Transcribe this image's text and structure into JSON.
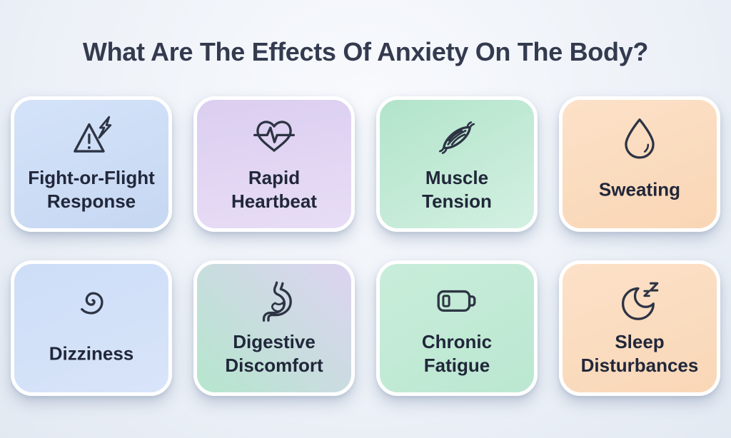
{
  "title": "What Are The Effects Of Anxiety On The Body?",
  "theme": {
    "background_top": "#f8fafd",
    "background_bottom": "#e3e9f2",
    "title_color": "#343b4f",
    "label_color": "#21273a",
    "icon_stroke": "#2d3444",
    "card_border": "#ffffff"
  },
  "cards": [
    {
      "label": "Fight-or-Flight\nResponse",
      "icon": "warning-lightning-icon",
      "bg_from": "#d4e3f9",
      "bg_to": "#c6d7f2",
      "bg_dir": "160deg"
    },
    {
      "label": "Rapid\nHeartbeat",
      "icon": "heartbeat-icon",
      "bg_from": "#dbcef0",
      "bg_to": "#e8ddf6",
      "bg_dir": "170deg"
    },
    {
      "label": "Muscle\nTension",
      "icon": "muscle-icon",
      "bg_from": "#b2e4ca",
      "bg_to": "#d3f0e2",
      "bg_dir": "150deg"
    },
    {
      "label": "Sweating",
      "icon": "droplet-icon",
      "bg_from": "#fce1c8",
      "bg_to": "#f9d6b5",
      "bg_dir": "160deg"
    },
    {
      "label": "Dizziness",
      "icon": "spiral-icon",
      "bg_from": "#cddef7",
      "bg_to": "#d8e4f9",
      "bg_dir": "160deg"
    },
    {
      "label": "Digestive\nDiscomfort",
      "icon": "stomach-icon",
      "bg_from": "#b5e6cd",
      "bg_to": "#ddd3f1",
      "bg_dir": "45deg"
    },
    {
      "label": "Chronic\nFatigue",
      "icon": "battery-low-icon",
      "bg_from": "#c8edda",
      "bg_to": "#bbe7d1",
      "bg_dir": "150deg"
    },
    {
      "label": "Sleep\nDisturbances",
      "icon": "moon-zzz-icon",
      "bg_from": "#fce1c8",
      "bg_to": "#f9d7b7",
      "bg_dir": "160deg"
    }
  ]
}
